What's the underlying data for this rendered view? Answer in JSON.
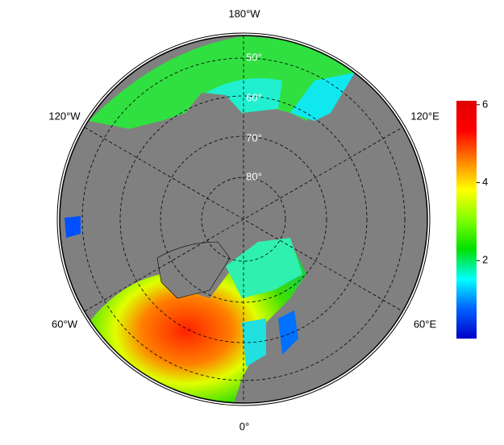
{
  "map": {
    "longitude_labels": [
      "180°W",
      "120°W",
      "120°E",
      "60°W",
      "60°E",
      "0°"
    ],
    "latitude_labels": [
      "50°",
      "60°",
      "70°",
      "80°"
    ],
    "colorbar": {
      "range": [
        0,
        6.1
      ],
      "ticks": [
        2,
        4,
        6
      ],
      "colormap": [
        "#0000c8",
        "#0060ff",
        "#00ffff",
        "#00e000",
        "#80ff00",
        "#ffff00",
        "#ff8000",
        "#ff0000",
        "#e00000"
      ]
    }
  }
}
